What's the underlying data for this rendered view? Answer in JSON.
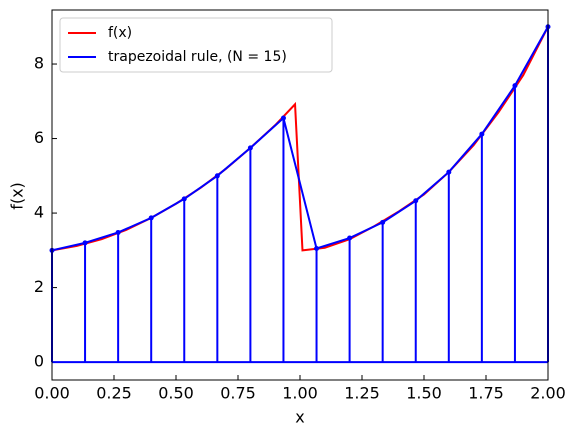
{
  "chart_data": {
    "type": "line",
    "xlabel": "x",
    "ylabel": "f(x)",
    "xlim": [
      0,
      2
    ],
    "ylim": [
      -0.48,
      9.45
    ],
    "xticks": [
      {
        "value": 0,
        "label": "0.00"
      },
      {
        "value": 0.25,
        "label": "0.25"
      },
      {
        "value": 0.5,
        "label": "0.50"
      },
      {
        "value": 0.75,
        "label": "0.75"
      },
      {
        "value": 1,
        "label": "1.00"
      },
      {
        "value": 1.25,
        "label": "1.25"
      },
      {
        "value": 1.5,
        "label": "1.50"
      },
      {
        "value": 1.75,
        "label": "1.75"
      },
      {
        "value": 2,
        "label": "2.00"
      }
    ],
    "yticks": [
      0,
      2,
      4,
      6,
      8
    ],
    "legend": "upper left",
    "series": [
      {
        "name": "f(x)",
        "color": "#ff0000",
        "x": [
          0,
          0.1,
          0.2,
          0.3,
          0.4,
          0.5,
          0.6,
          0.7,
          0.8,
          0.9,
          0.98,
          1.01,
          1.1,
          1.2,
          1.3,
          1.4,
          1.5,
          1.6,
          1.7,
          1.8,
          1.9,
          2.0
        ],
        "values": [
          3.0,
          3.12,
          3.3,
          3.55,
          3.87,
          4.25,
          4.68,
          5.18,
          5.75,
          6.36,
          6.92,
          3.0,
          3.07,
          3.3,
          3.65,
          4.05,
          4.5,
          5.1,
          5.82,
          6.7,
          7.7,
          9.0
        ]
      },
      {
        "name": "trapezoidal rule, (N = 15)",
        "color": "#0000ff",
        "x": [
          0,
          0.1333,
          0.2667,
          0.4,
          0.5333,
          0.6667,
          0.8,
          0.9333,
          1.0667,
          1.2,
          1.3333,
          1.4667,
          1.6,
          1.7333,
          1.8667,
          2.0
        ],
        "values": [
          3.0,
          3.2,
          3.48,
          3.87,
          4.38,
          5.0,
          5.75,
          6.55,
          3.05,
          3.33,
          3.75,
          4.33,
          5.1,
          6.12,
          7.42,
          9.0
        ]
      }
    ]
  }
}
